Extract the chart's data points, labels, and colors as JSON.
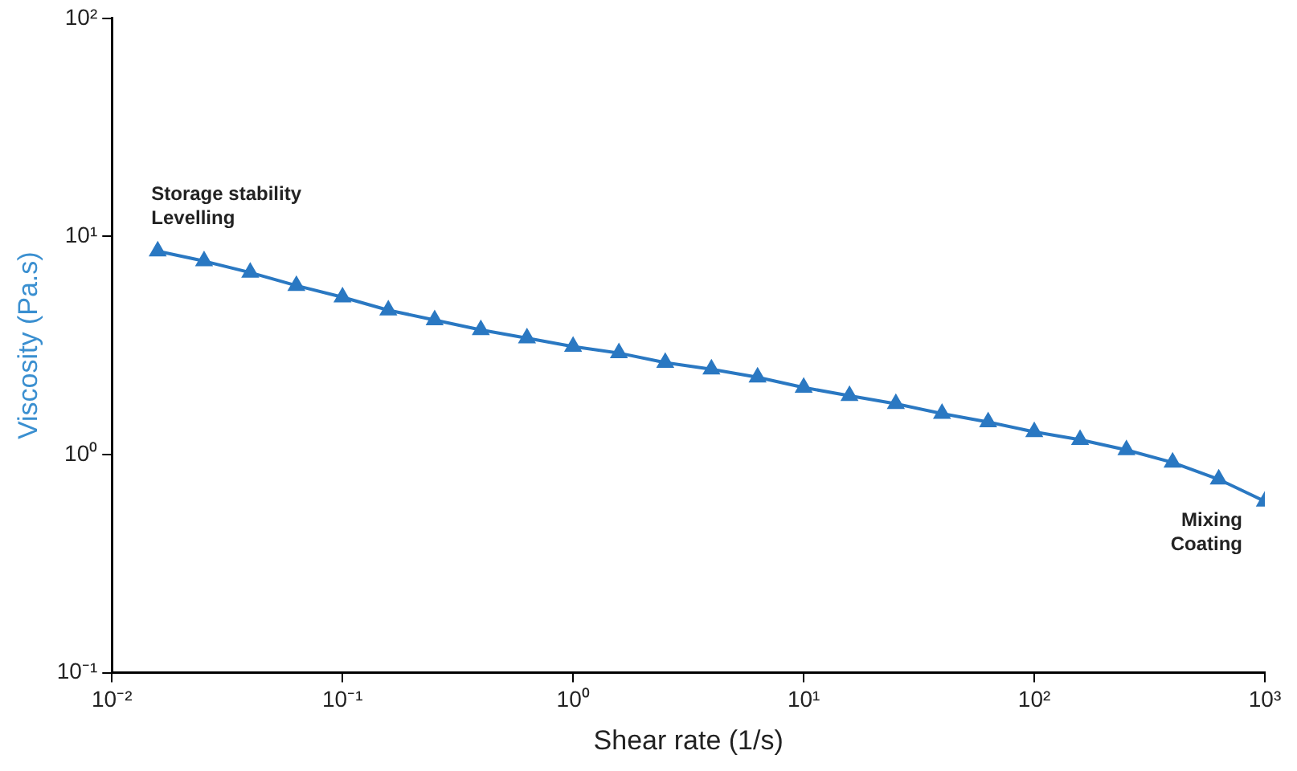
{
  "chart_data": {
    "type": "line",
    "xlabel": "Shear rate (1/s)",
    "ylabel": "Viscosity (Pa.s)",
    "log": "xy",
    "grid": false,
    "legend": false,
    "marker": "triangle",
    "line_style": "solid",
    "xlim": [
      0.01,
      1000
    ],
    "ylim": [
      0.1,
      100
    ],
    "xticks": [
      {
        "value": 0.01,
        "label": "10⁻²"
      },
      {
        "value": 0.1,
        "label": "10⁻¹"
      },
      {
        "value": 1,
        "label": "10⁰"
      },
      {
        "value": 10,
        "label": "10¹"
      },
      {
        "value": 100,
        "label": "10²"
      },
      {
        "value": 1000,
        "label": "10³"
      }
    ],
    "yticks": [
      {
        "value": 0.1,
        "label": "10⁻¹"
      },
      {
        "value": 1,
        "label": "10⁰"
      },
      {
        "value": 10,
        "label": "10¹"
      },
      {
        "value": 100,
        "label": "10²"
      }
    ],
    "x": [
      0.0158,
      0.0251,
      0.0398,
      0.0631,
      0.1,
      0.158,
      0.251,
      0.398,
      0.631,
      1,
      1.58,
      2.51,
      3.98,
      6.31,
      10,
      15.8,
      25.1,
      39.8,
      63.1,
      100,
      158,
      251,
      398,
      631,
      1000
    ],
    "series": [
      {
        "color": "#2a78c2",
        "values": [
          8.56,
          7.71,
          6.83,
          5.95,
          5.27,
          4.59,
          4.14,
          3.73,
          3.42,
          3.13,
          2.92,
          2.64,
          2.46,
          2.26,
          2.03,
          1.86,
          1.71,
          1.54,
          1.41,
          1.27,
          1.17,
          1.05,
          0.92,
          0.77,
          0.61
        ]
      }
    ],
    "annotations": [
      {
        "text": "Storage stability\nLevelling",
        "x": 0.0158,
        "y": 8.56
      },
      {
        "text": "Mixing\nCoating",
        "x": 1000,
        "y": 0.61
      }
    ]
  }
}
